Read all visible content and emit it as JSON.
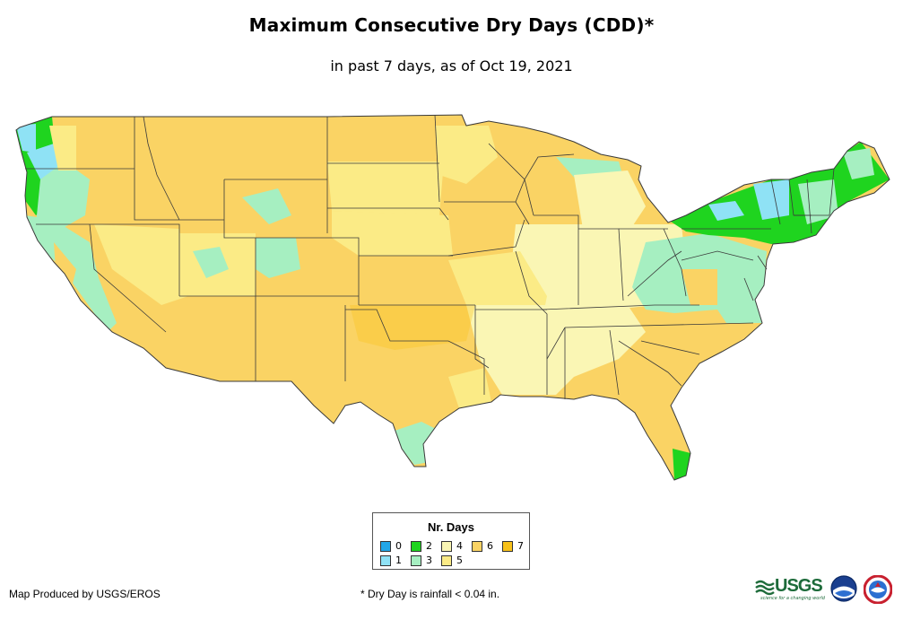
{
  "title": "Maximum Consecutive Dry Days (CDD)*",
  "subtitle": "in past 7 days, as of Oct 19, 2021",
  "legend": {
    "title": "Nr. Days",
    "items": [
      {
        "label": "0",
        "color": "#22a7e8"
      },
      {
        "label": "1",
        "color": "#8fe2f5"
      },
      {
        "label": "2",
        "color": "#1fd41f"
      },
      {
        "label": "3",
        "color": "#a6efc1"
      },
      {
        "label": "4",
        "color": "#faf6b4"
      },
      {
        "label": "5",
        "color": "#fbeb86"
      },
      {
        "label": "6",
        "color": "#fad364"
      },
      {
        "label": "7",
        "color": "#f8c21a"
      }
    ]
  },
  "credit": "Map Produced by USGS/EROS",
  "footnote": "* Dry Day is rainfall < 0.04 in.",
  "logos": {
    "usgs_word": "USGS",
    "usgs_tagline": "science for a changing world"
  }
}
